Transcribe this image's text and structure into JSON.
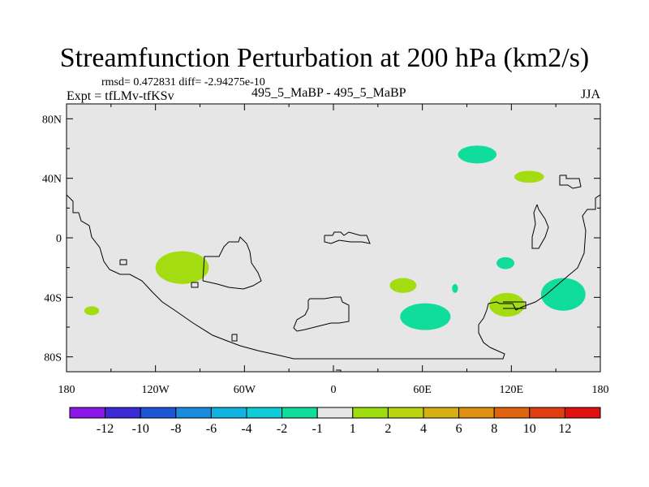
{
  "chart_data": {
    "type": "contour-map",
    "title": "Streamfunction Perturbation at 200 hPa (km2/s)",
    "subtitle_left_top": "rmsd= 0.472831 diff= -2.94275e-10",
    "subtitle_left": "Expt = tfLMv-tfKSv",
    "subtitle_center": "495_5_MaBP - 495_5_MaBP",
    "subtitle_right": "JJA",
    "x_ticks": [
      {
        "value": 180,
        "label": "180"
      },
      {
        "value": -120,
        "label": "120W"
      },
      {
        "value": -60,
        "label": "60W"
      },
      {
        "value": 0,
        "label": "0"
      },
      {
        "value": 60,
        "label": "60E"
      },
      {
        "value": 120,
        "label": "120E"
      },
      {
        "value": 180,
        "label": "180"
      }
    ],
    "y_ticks": [
      {
        "value": 80,
        "label": "80N"
      },
      {
        "value": 40,
        "label": "40N"
      },
      {
        "value": 0,
        "label": "0"
      },
      {
        "value": -40,
        "label": "40S"
      },
      {
        "value": -80,
        "label": "80S"
      }
    ],
    "xlim": [
      -180,
      180
    ],
    "ylim": [
      -90,
      90
    ],
    "colorbar": {
      "colors": [
        "#8a17e8",
        "#3c2ad6",
        "#1c56d6",
        "#1a8ce0",
        "#10b4e0",
        "#10ccd8",
        "#10dc9c",
        "#e6e6e6",
        "#9ede10",
        "#bcd410",
        "#d6b010",
        "#e09010",
        "#e06410",
        "#e03e10",
        "#e01010"
      ],
      "labels": [
        "-12",
        "-10",
        "-8",
        "-6",
        "-4",
        "-2",
        "-1",
        "1",
        "2",
        "4",
        "6",
        "8",
        "10",
        "12"
      ]
    },
    "anomalies": [
      {
        "lon": -102,
        "lat": -20,
        "rlon": 18,
        "rlat": 11,
        "color": "#a3dc10",
        "sign": "positive"
      },
      {
        "lon": -163,
        "lat": -49,
        "rlon": 5,
        "rlat": 3,
        "color": "#a3dc10",
        "sign": "positive"
      },
      {
        "lon": 47,
        "lat": -32,
        "rlon": 9,
        "rlat": 5,
        "color": "#a3dc10",
        "sign": "positive"
      },
      {
        "lon": 117,
        "lat": -45,
        "rlon": 12,
        "rlat": 8,
        "color": "#a3dc10",
        "sign": "positive"
      },
      {
        "lon": 132,
        "lat": 41,
        "rlon": 10,
        "rlat": 4,
        "color": "#a3dc10",
        "sign": "positive"
      },
      {
        "lon": 97,
        "lat": 56,
        "rlon": 13,
        "rlat": 6,
        "color": "#10dc9c",
        "sign": "negative"
      },
      {
        "lon": 116,
        "lat": -17,
        "rlon": 6,
        "rlat": 4,
        "color": "#10dc9c",
        "sign": "negative"
      },
      {
        "lon": 62,
        "lat": -53,
        "rlon": 17,
        "rlat": 9,
        "color": "#10dc9c",
        "sign": "negative"
      },
      {
        "lon": 155,
        "lat": -38,
        "rlon": 15,
        "rlat": 11,
        "color": "#10dc9c",
        "sign": "negative"
      },
      {
        "lon": 82,
        "lat": -34,
        "rlon": 2,
        "rlat": 3,
        "color": "#10dc9c",
        "sign": "negative"
      }
    ]
  }
}
